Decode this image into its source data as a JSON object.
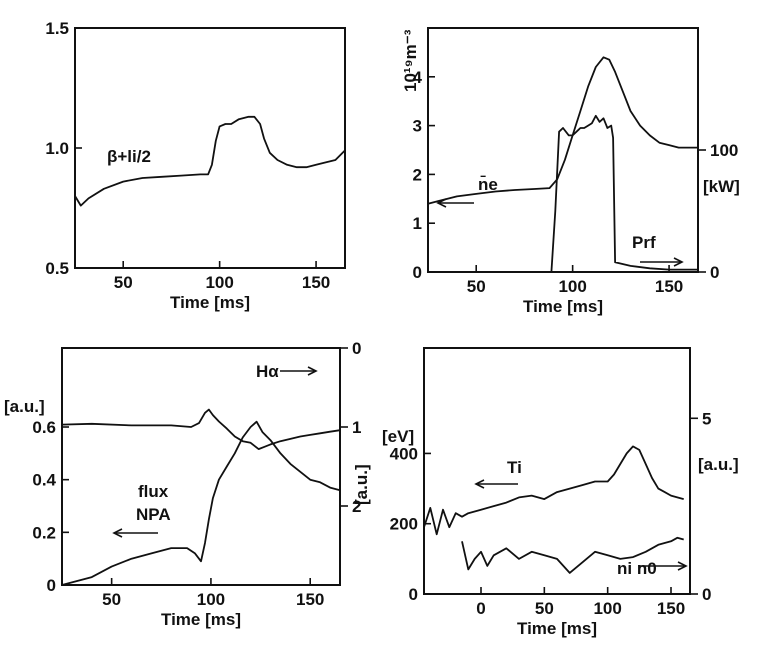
{
  "chart_data": [
    {
      "id": "p1",
      "type": "line",
      "xlabel": "Time [ms]",
      "xlim": [
        25,
        165
      ],
      "ylim": [
        0.5,
        1.5
      ],
      "xticks": [
        50,
        100,
        150
      ],
      "yticks": [
        0.5,
        1.0,
        1.5
      ],
      "yticklabels": [
        "0.5",
        "1.0",
        "1.5"
      ],
      "annotations": [
        "β+li/2"
      ],
      "series": [
        {
          "name": "β+li/2",
          "x": [
            25,
            28,
            32,
            40,
            50,
            60,
            70,
            80,
            90,
            94,
            96,
            98,
            100,
            103,
            106,
            110,
            115,
            118,
            121,
            123,
            126,
            130,
            135,
            140,
            145,
            150,
            155,
            160,
            165
          ],
          "y": [
            0.8,
            0.76,
            0.79,
            0.83,
            0.86,
            0.875,
            0.88,
            0.885,
            0.89,
            0.89,
            0.93,
            1.03,
            1.09,
            1.1,
            1.1,
            1.12,
            1.13,
            1.13,
            1.1,
            1.04,
            0.98,
            0.95,
            0.93,
            0.92,
            0.92,
            0.93,
            0.94,
            0.95,
            0.99
          ]
        }
      ]
    },
    {
      "id": "p2",
      "type": "line",
      "xlabel": "Time [ms]",
      "ylabel": "10¹⁹m⁻³",
      "y2label": "[kW]",
      "xlim": [
        25,
        165
      ],
      "ylim": [
        0,
        5
      ],
      "y2lim": [
        0,
        200
      ],
      "xticks": [
        50,
        100,
        150
      ],
      "yticks": [
        0,
        1,
        2,
        3,
        4
      ],
      "y2ticks": [
        0,
        100
      ],
      "annotations": [
        "n̄e",
        "Prf"
      ],
      "series": [
        {
          "name": "n̄e",
          "axis": "left",
          "x": [
            25,
            30,
            40,
            50,
            60,
            70,
            80,
            88,
            92,
            96,
            100,
            104,
            108,
            112,
            116,
            119,
            122,
            126,
            130,
            135,
            140,
            145,
            150,
            155,
            160,
            165
          ],
          "y": [
            1.4,
            1.45,
            1.55,
            1.6,
            1.65,
            1.68,
            1.7,
            1.72,
            1.9,
            2.3,
            2.8,
            3.3,
            3.8,
            4.2,
            4.4,
            4.35,
            4.1,
            3.7,
            3.3,
            3.0,
            2.8,
            2.65,
            2.6,
            2.55,
            2.55,
            2.55
          ]
        },
        {
          "name": "Prf",
          "axis": "right",
          "x": [
            89,
            91,
            93,
            95,
            98,
            100,
            102,
            104,
            106,
            108,
            110,
            112,
            114,
            116,
            118,
            120,
            121,
            122,
            130,
            140,
            150,
            160,
            165
          ],
          "y": [
            0,
            50,
            115,
            118,
            112,
            112,
            115,
            118,
            118,
            120,
            122,
            128,
            123,
            126,
            118,
            120,
            110,
            8,
            5,
            3,
            2,
            2,
            2
          ]
        }
      ]
    },
    {
      "id": "p3",
      "type": "line",
      "xlabel": "Time [ms]",
      "ylabel": "[a.u.]",
      "y2label": "[a.u.]",
      "xlim": [
        25,
        165
      ],
      "ylim": [
        0,
        0.9
      ],
      "y2lim": [
        -3.0,
        0
      ],
      "xticks": [
        50,
        100,
        150
      ],
      "yticks": [
        0,
        0.2,
        0.4,
        0.6
      ],
      "yticklabels": [
        "0",
        "0.2",
        "0.4",
        "0.6"
      ],
      "y2ticks": [
        0,
        -1,
        -2
      ],
      "y2ticklabels": [
        "0",
        "1",
        "2"
      ],
      "annotations": [
        "Hα",
        "flux",
        "NPA"
      ],
      "series": [
        {
          "name": "Hα",
          "axis": "right",
          "x": [
            25,
            40,
            60,
            80,
            90,
            94,
            97,
            99,
            101,
            104,
            108,
            112,
            116,
            120,
            124,
            127,
            130,
            135,
            140,
            145,
            150,
            155,
            160,
            165
          ],
          "y": [
            -0.97,
            -0.96,
            -0.98,
            -0.98,
            -1.0,
            -0.95,
            -0.82,
            -0.78,
            -0.85,
            -0.93,
            -1.02,
            -1.12,
            -1.18,
            -1.2,
            -1.28,
            -1.25,
            -1.22,
            -1.18,
            -1.15,
            -1.12,
            -1.1,
            -1.08,
            -1.06,
            -1.04
          ]
        },
        {
          "name": "flux NPA",
          "axis": "left",
          "x": [
            25,
            30,
            40,
            50,
            60,
            70,
            80,
            88,
            92,
            95,
            97,
            99,
            101,
            104,
            108,
            112,
            116,
            120,
            123,
            126,
            130,
            135,
            140,
            145,
            150,
            155,
            160,
            165
          ],
          "y": [
            0.0,
            0.01,
            0.03,
            0.07,
            0.1,
            0.12,
            0.14,
            0.14,
            0.12,
            0.09,
            0.16,
            0.25,
            0.33,
            0.4,
            0.45,
            0.5,
            0.56,
            0.6,
            0.62,
            0.58,
            0.55,
            0.5,
            0.46,
            0.43,
            0.4,
            0.39,
            0.37,
            0.36
          ]
        }
      ]
    },
    {
      "id": "p4",
      "type": "line",
      "xlabel": "Time [ms]",
      "ylabel": "[eV]",
      "y2label": "[a.u.]",
      "xlim": [
        -45,
        165
      ],
      "ylim": [
        0,
        700
      ],
      "y2lim": [
        0,
        7
      ],
      "xticks": [
        0,
        50,
        100,
        150
      ],
      "yticks": [
        0,
        200,
        400
      ],
      "y2ticks": [
        0,
        5
      ],
      "annotations": [
        "Ti",
        "ni n0"
      ],
      "series": [
        {
          "name": "Ti",
          "axis": "left",
          "x": [
            -45,
            -40,
            -35,
            -30,
            -25,
            -20,
            -15,
            -10,
            0,
            10,
            20,
            30,
            40,
            50,
            60,
            70,
            80,
            90,
            100,
            105,
            110,
            115,
            120,
            125,
            130,
            135,
            140,
            145,
            150,
            155,
            160
          ],
          "y": [
            190,
            245,
            170,
            240,
            190,
            230,
            220,
            230,
            240,
            250,
            260,
            275,
            280,
            270,
            290,
            300,
            310,
            320,
            320,
            340,
            370,
            400,
            420,
            410,
            370,
            330,
            300,
            290,
            280,
            275,
            270
          ]
        },
        {
          "name": "ni n0",
          "axis": "right",
          "x": [
            -15,
            -10,
            -5,
            0,
            5,
            10,
            20,
            30,
            40,
            50,
            60,
            70,
            80,
            90,
            100,
            110,
            120,
            130,
            140,
            150,
            155,
            160
          ],
          "y": [
            1.5,
            0.7,
            1.0,
            1.2,
            0.8,
            1.1,
            1.3,
            1.0,
            1.2,
            1.1,
            1.0,
            0.6,
            0.9,
            1.2,
            1.1,
            1.0,
            1.05,
            1.2,
            1.4,
            1.5,
            1.6,
            1.55
          ]
        }
      ]
    }
  ]
}
